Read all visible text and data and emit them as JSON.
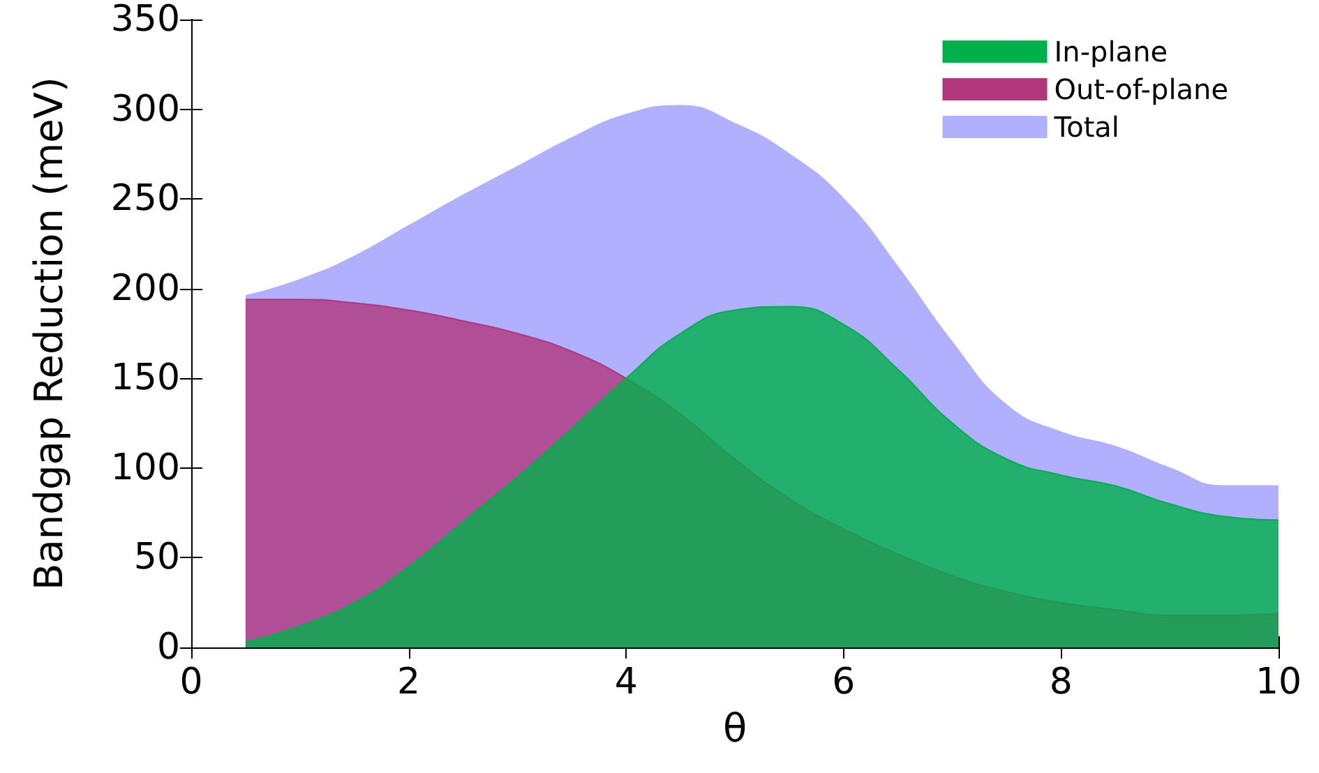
{
  "chart_data": {
    "type": "area",
    "xlabel": "θ",
    "ylabel": "Bandgap Reduction (meV)",
    "x": [
      0.5,
      1,
      1.5,
      2,
      2.5,
      3,
      3.5,
      4,
      4.5,
      5,
      5.5,
      6,
      6.5,
      7,
      7.5,
      8,
      8.5,
      9,
      9.5,
      10
    ],
    "series": [
      {
        "name": "In-plane",
        "color": "#00b04a",
        "values": [
          3,
          12,
          25,
          45,
          70,
          95,
          122,
          150,
          175,
          188,
          190,
          180,
          155,
          125,
          105,
          96,
          90,
          80,
          73,
          71
        ]
      },
      {
        "name": "Out-of-plane",
        "color": "#b0377b",
        "values": [
          194,
          194,
          192,
          188,
          182,
          175,
          165,
          150,
          130,
          105,
          83,
          66,
          52,
          40,
          31,
          25,
          21,
          18,
          18,
          19
        ]
      },
      {
        "name": "Total",
        "color": "#b0b0ff",
        "values": [
          196,
          205,
          218,
          235,
          252,
          268,
          284,
          297,
          302,
          292,
          275,
          250,
          212,
          170,
          135,
          120,
          112,
          100,
          90,
          90
        ]
      }
    ],
    "xlim": [
      0,
      10
    ],
    "xticks": [
      0,
      2,
      4,
      6,
      8,
      10
    ],
    "ylim": [
      0,
      350
    ],
    "yticks": [
      0,
      50,
      100,
      150,
      200,
      250,
      300,
      350
    ],
    "grid": false,
    "legend": "top right"
  }
}
